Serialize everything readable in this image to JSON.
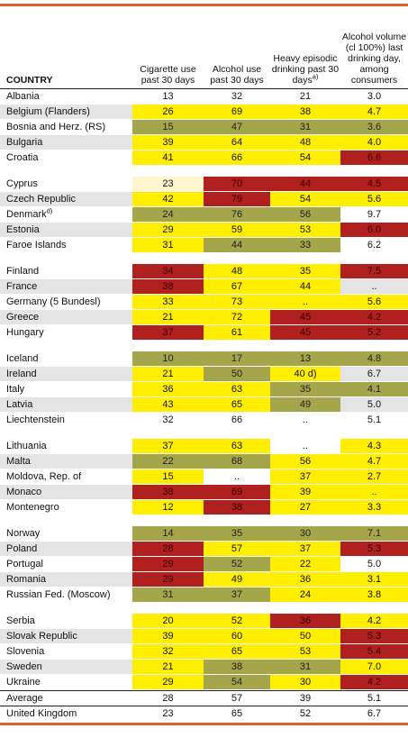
{
  "table": {
    "header": [
      "COUNTRY",
      "Cigarette use past 30 days",
      "Alcohol use past 30 days",
      "Heavy episodic drinking past 30 days",
      "Alcohol volume (cl 100%) last drinking day, among consumers"
    ],
    "header_note": "a)",
    "palette": {
      "Y": "#ffee00",
      "G": "#a5a54c",
      "R": "#b0201f",
      "C": "#fff6cf"
    },
    "groups": [
      {
        "rows": [
          {
            "country": "Albania",
            "values": [
              "13",
              "32",
              "21",
              "3.0"
            ],
            "colors": [
              null,
              null,
              null,
              null
            ]
          },
          {
            "country": "Belgium (Flanders)",
            "values": [
              "26",
              "69",
              "38",
              "4.7"
            ],
            "colors": [
              "Y",
              "Y",
              "Y",
              "Y"
            ]
          },
          {
            "country": "Bosnia and Herz. (RS)",
            "values": [
              "15",
              "47",
              "31",
              "3.6"
            ],
            "colors": [
              "G",
              "G",
              "G",
              "G"
            ]
          },
          {
            "country": "Bulgaria",
            "values": [
              "39",
              "64",
              "48",
              "4.0"
            ],
            "colors": [
              "Y",
              "Y",
              "Y",
              "Y"
            ]
          },
          {
            "country": "Croatia",
            "values": [
              "41",
              "66",
              "54",
              "6.6"
            ],
            "colors": [
              "Y",
              "Y",
              "Y",
              "R"
            ]
          }
        ]
      },
      {
        "rows": [
          {
            "country": "Cyprus",
            "values": [
              "23",
              "70",
              "44",
              "4.5"
            ],
            "colors": [
              "C",
              "R",
              "R",
              "R"
            ]
          },
          {
            "country": "Czech Republic",
            "values": [
              "42",
              "79",
              "54",
              "5.6"
            ],
            "colors": [
              "Y",
              "R",
              "Y",
              "Y"
            ]
          },
          {
            "country": "Denmark",
            "note": "d)",
            "values": [
              "24",
              "76",
              "56",
              "9.7"
            ],
            "colors": [
              "G",
              "G",
              "G",
              null
            ]
          },
          {
            "country": "Estonia",
            "values": [
              "29",
              "59",
              "53",
              "6.0"
            ],
            "colors": [
              "Y",
              "Y",
              "Y",
              "R"
            ]
          },
          {
            "country": "Faroe Islands",
            "values": [
              "31",
              "44",
              "33",
              "6.2"
            ],
            "colors": [
              "Y",
              "G",
              "G",
              null
            ]
          }
        ]
      },
      {
        "rows": [
          {
            "country": "Finland",
            "values": [
              "34",
              "48",
              "35",
              "7.5"
            ],
            "colors": [
              "R",
              "Y",
              "Y",
              "R"
            ]
          },
          {
            "country": "France",
            "values": [
              "38",
              "67",
              "44",
              ".."
            ],
            "colors": [
              "R",
              "Y",
              "Y",
              null
            ]
          },
          {
            "country": "Germany (5 Bundesl)",
            "values": [
              "33",
              "73",
              "..",
              "5.6"
            ],
            "colors": [
              "Y",
              "Y",
              "Y",
              "Y"
            ]
          },
          {
            "country": "Greece",
            "values": [
              "21",
              "72",
              "45",
              "4.2"
            ],
            "colors": [
              "Y",
              "Y",
              "R",
              "R"
            ]
          },
          {
            "country": "Hungary",
            "values": [
              "37",
              "61",
              "45",
              "5.2"
            ],
            "colors": [
              "R",
              "Y",
              "R",
              "R"
            ]
          }
        ]
      },
      {
        "rows": [
          {
            "country": "Iceland",
            "values": [
              "10",
              "17",
              "13",
              "4.8"
            ],
            "colors": [
              "G",
              "G",
              "G",
              "G"
            ]
          },
          {
            "country": "Ireland",
            "values": [
              "21",
              "50",
              "40 d)",
              "6.7"
            ],
            "colors": [
              "Y",
              "G",
              "Y",
              null
            ]
          },
          {
            "country": "Italy",
            "values": [
              "36",
              "63",
              "35",
              "4.1"
            ],
            "colors": [
              "Y",
              "Y",
              "G",
              "G"
            ]
          },
          {
            "country": "Latvia",
            "values": [
              "43",
              "65",
              "49",
              "5.0"
            ],
            "colors": [
              "Y",
              "Y",
              "G",
              null
            ]
          },
          {
            "country": "Liechtenstein",
            "values": [
              "32",
              "66",
              "..",
              "5.1"
            ],
            "colors": [
              null,
              null,
              null,
              null
            ]
          }
        ]
      },
      {
        "rows": [
          {
            "country": "Lithuania",
            "values": [
              "37",
              "63",
              "..",
              "4.3"
            ],
            "colors": [
              "Y",
              "Y",
              null,
              "Y"
            ]
          },
          {
            "country": "Malta",
            "values": [
              "22",
              "68",
              "56",
              "4.7"
            ],
            "colors": [
              "G",
              "G",
              "Y",
              "Y"
            ]
          },
          {
            "country": "Moldova, Rep. of",
            "values": [
              "15",
              "..",
              "37",
              "2.7"
            ],
            "colors": [
              "Y",
              null,
              "Y",
              "Y"
            ]
          },
          {
            "country": "Monaco",
            "values": [
              "38",
              "69",
              "39",
              ".."
            ],
            "colors": [
              "R",
              "R",
              "Y",
              "Y"
            ]
          },
          {
            "country": "Montenegro",
            "values": [
              "12",
              "38",
              "27",
              "3.3"
            ],
            "colors": [
              "Y",
              "R",
              "Y",
              "Y"
            ]
          }
        ]
      },
      {
        "rows": [
          {
            "country": "Norway",
            "values": [
              "14",
              "35",
              "30",
              "7.1"
            ],
            "colors": [
              "G",
              "G",
              "G",
              "G"
            ]
          },
          {
            "country": "Poland",
            "values": [
              "28",
              "57",
              "37",
              "5.3"
            ],
            "colors": [
              "R",
              "Y",
              "Y",
              "R"
            ]
          },
          {
            "country": "Portugal",
            "values": [
              "29",
              "52",
              "22",
              "5.0"
            ],
            "colors": [
              "R",
              "G",
              "Y",
              null
            ]
          },
          {
            "country": "Romania",
            "values": [
              "29",
              "49",
              "36",
              "3.1"
            ],
            "colors": [
              "R",
              "Y",
              "Y",
              "Y"
            ]
          },
          {
            "country": "Russian Fed. (Moscow)",
            "values": [
              "31",
              "37",
              "24",
              "3.8"
            ],
            "colors": [
              "G",
              "G",
              "Y",
              "Y"
            ]
          }
        ]
      },
      {
        "rows": [
          {
            "country": "Serbia",
            "values": [
              "20",
              "52",
              "36",
              "4.2"
            ],
            "colors": [
              "Y",
              "Y",
              "R",
              "Y"
            ]
          },
          {
            "country": "Slovak Republic",
            "values": [
              "39",
              "60",
              "50",
              "5.3"
            ],
            "colors": [
              "Y",
              "Y",
              "Y",
              "R"
            ]
          },
          {
            "country": "Slovenia",
            "values": [
              "32",
              "65",
              "53",
              "5.4"
            ],
            "colors": [
              "Y",
              "Y",
              "Y",
              "R"
            ]
          },
          {
            "country": "Sweden",
            "values": [
              "21",
              "38",
              "31",
              "7.0"
            ],
            "colors": [
              "Y",
              "G",
              "G",
              "Y"
            ]
          },
          {
            "country": "Ukraine",
            "values": [
              "29",
              "54",
              "30",
              "4.2"
            ],
            "colors": [
              "Y",
              "G",
              "Y",
              "R"
            ]
          }
        ]
      }
    ],
    "footer": [
      {
        "country": "Average",
        "values": [
          "28",
          "57",
          "39",
          "5.1"
        ]
      },
      {
        "country": "United Kingdom",
        "values": [
          "23",
          "65",
          "52",
          "6.7"
        ]
      }
    ]
  }
}
